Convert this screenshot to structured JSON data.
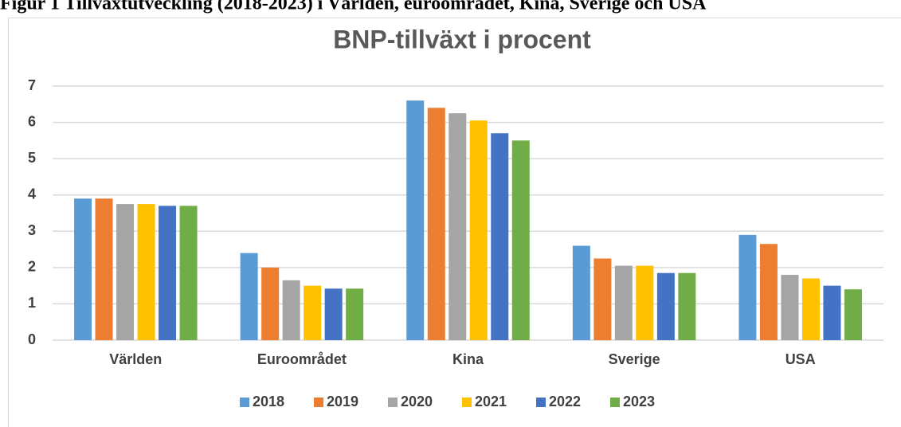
{
  "heading": "Figur 1 Tillväxtutveckling (2018-2023) i Världen, euroområdet, Kina, Sverige och USA",
  "chart_data": {
    "type": "bar",
    "title": "BNP-tillväxt i procent",
    "categories": [
      "Världen",
      "Euroområdet",
      "Kina",
      "Sverige",
      "USA"
    ],
    "series": [
      {
        "name": "2018",
        "color": "#5b9bd5",
        "values": [
          3.9,
          2.4,
          6.6,
          2.6,
          2.9
        ]
      },
      {
        "name": "2019",
        "color": "#ed7d31",
        "values": [
          3.9,
          2.0,
          6.4,
          2.25,
          2.65
        ]
      },
      {
        "name": "2020",
        "color": "#a5a5a5",
        "values": [
          3.75,
          1.65,
          6.25,
          2.05,
          1.8
        ]
      },
      {
        "name": "2021",
        "color": "#ffc000",
        "values": [
          3.75,
          1.5,
          6.05,
          2.05,
          1.7
        ]
      },
      {
        "name": "2022",
        "color": "#4472c4",
        "values": [
          3.7,
          1.42,
          5.7,
          1.85,
          1.5
        ]
      },
      {
        "name": "2023",
        "color": "#70ad47",
        "values": [
          3.7,
          1.42,
          5.5,
          1.85,
          1.4
        ]
      }
    ],
    "ylim": [
      0,
      7
    ],
    "yticks": [
      0,
      1,
      2,
      3,
      4,
      5,
      6,
      7
    ],
    "grid": true,
    "legend": "bottom"
  }
}
